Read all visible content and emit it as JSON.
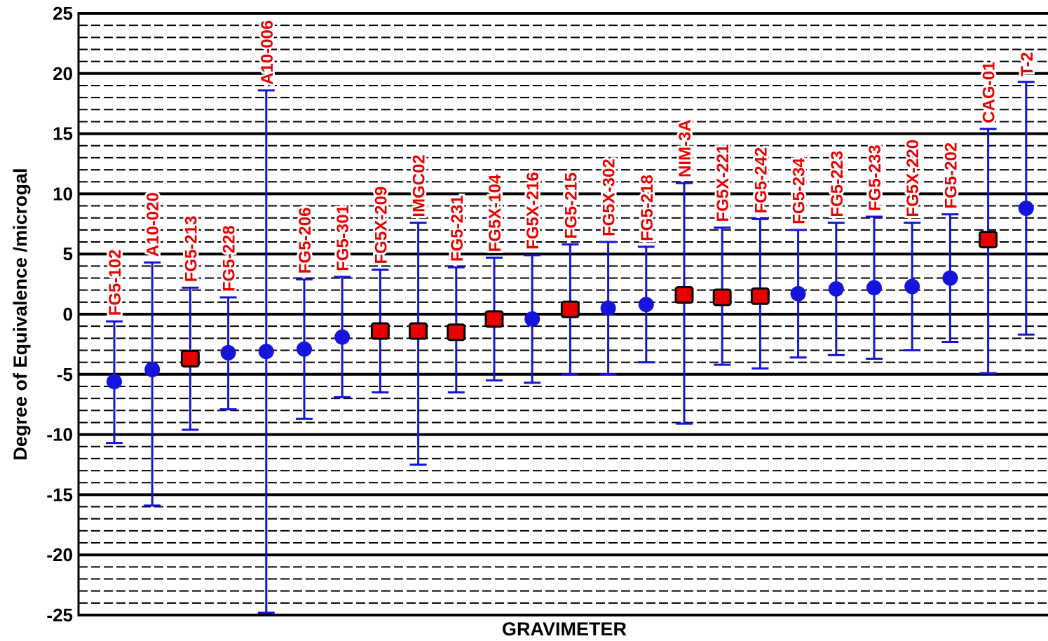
{
  "chart_data": {
    "type": "scatter",
    "title": "",
    "xlabel": "GRAVIMETER",
    "ylabel": "Degree of Equivalence /microgal",
    "ylim": [
      -25,
      25
    ],
    "yticks": [
      25,
      20,
      15,
      10,
      5,
      0,
      -5,
      -10,
      -15,
      -20,
      -25
    ],
    "grid": "major solid lines every 5, dashed minor lines every 1",
    "colors": {
      "marker_circle": "#1414dc",
      "marker_square": "#e80000",
      "errorbar": "#1414dc",
      "label": "#e80000",
      "grid": "#000000"
    },
    "categories": [
      "FG5-102",
      "A10-020",
      "FG5-213",
      "FG5-228",
      "A10-006",
      "FG5-206",
      "FG5-301",
      "FG5X-209",
      "IMGC02",
      "FG5-231",
      "FG5X-104",
      "FG5X-216",
      "FG5-215",
      "FG5X-302",
      "FG5-218",
      "NIM-3A",
      "FG5X-221",
      "FG5-242",
      "FG5-234",
      "FG5-223",
      "FG5-233",
      "FG5X-220",
      "FG5-202",
      "CAG-01",
      "T-2"
    ],
    "points": [
      {
        "name": "FG5-102",
        "y": -5.6,
        "low": -10.7,
        "high": -0.6,
        "marker": "circle"
      },
      {
        "name": "A10-020",
        "y": -4.6,
        "low": -15.9,
        "high": 4.3,
        "marker": "circle"
      },
      {
        "name": "FG5-213",
        "y": -3.7,
        "low": -9.6,
        "high": 2.2,
        "marker": "square"
      },
      {
        "name": "FG5-228",
        "y": -3.2,
        "low": -7.9,
        "high": 1.4,
        "marker": "circle"
      },
      {
        "name": "A10-006",
        "y": -3.1,
        "low": -24.8,
        "high": 18.6,
        "marker": "circle"
      },
      {
        "name": "FG5-206",
        "y": -2.9,
        "low": -8.7,
        "high": 2.9,
        "marker": "circle"
      },
      {
        "name": "FG5-301",
        "y": -1.9,
        "low": -6.9,
        "high": 3.1,
        "marker": "circle"
      },
      {
        "name": "FG5X-209",
        "y": -1.4,
        "low": -6.5,
        "high": 3.7,
        "marker": "square"
      },
      {
        "name": "IMGC02",
        "y": -1.4,
        "low": -12.5,
        "high": 7.6,
        "marker": "square"
      },
      {
        "name": "FG5-231",
        "y": -1.5,
        "low": -6.5,
        "high": 3.9,
        "marker": "square"
      },
      {
        "name": "FG5X-104",
        "y": -0.4,
        "low": -5.5,
        "high": 4.7,
        "marker": "square"
      },
      {
        "name": "FG5X-216",
        "y": -0.4,
        "low": -5.7,
        "high": 4.9,
        "marker": "circle"
      },
      {
        "name": "FG5-215",
        "y": 0.4,
        "low": -5.0,
        "high": 5.8,
        "marker": "square"
      },
      {
        "name": "FG5X-302",
        "y": 0.5,
        "low": -5.0,
        "high": 6.0,
        "marker": "circle"
      },
      {
        "name": "FG5-218",
        "y": 0.8,
        "low": -4.0,
        "high": 5.6,
        "marker": "circle"
      },
      {
        "name": "NIM-3A",
        "y": 1.6,
        "low": -9.1,
        "high": 10.9,
        "marker": "square"
      },
      {
        "name": "FG5X-221",
        "y": 1.4,
        "low": -4.2,
        "high": 7.2,
        "marker": "square"
      },
      {
        "name": "FG5-242",
        "y": 1.5,
        "low": -4.5,
        "high": 7.9,
        "marker": "square"
      },
      {
        "name": "FG5-234",
        "y": 1.7,
        "low": -3.6,
        "high": 7.0,
        "marker": "circle"
      },
      {
        "name": "FG5-223",
        "y": 2.1,
        "low": -3.4,
        "high": 7.6,
        "marker": "circle"
      },
      {
        "name": "FG5-233",
        "y": 2.2,
        "low": -3.7,
        "high": 8.1,
        "marker": "circle"
      },
      {
        "name": "FG5X-220",
        "y": 2.3,
        "low": -3.0,
        "high": 7.6,
        "marker": "circle"
      },
      {
        "name": "FG5-202",
        "y": 3.0,
        "low": -2.3,
        "high": 8.3,
        "marker": "circle"
      },
      {
        "name": "CAG-01",
        "y": 6.2,
        "low": -4.9,
        "high": 15.4,
        "marker": "square"
      },
      {
        "name": "T-2",
        "y": 8.8,
        "low": -1.7,
        "high": 19.3,
        "marker": "circle"
      }
    ]
  }
}
